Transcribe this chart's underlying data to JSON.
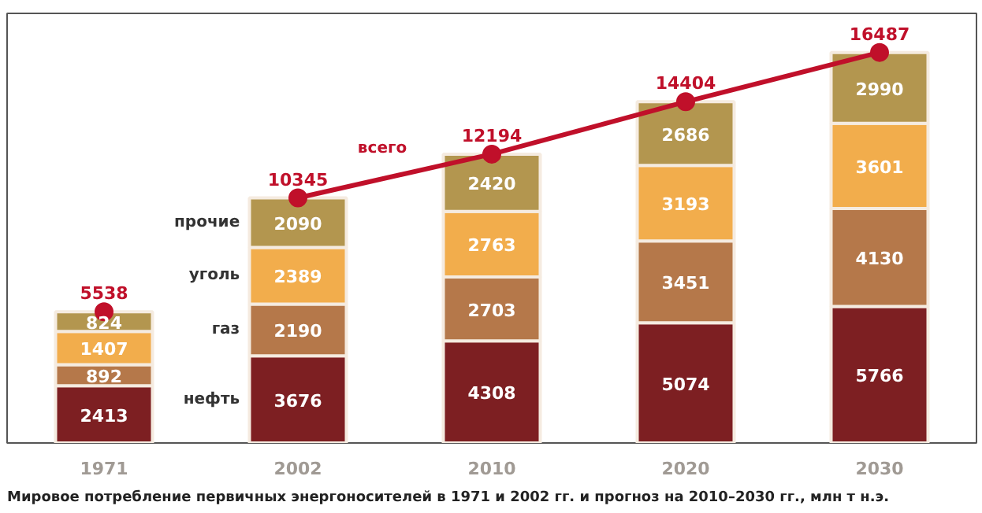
{
  "chart_data": {
    "type": "bar",
    "stacked": true,
    "data_labels": true,
    "grid": false,
    "tick_labels": "x",
    "title": "Мировое потребление первичных энергоносителей в 1971 и 2002 гг. и прогноз на 2010–2030 гг., млн т н.э.",
    "categories": [
      "1971",
      "2002",
      "2010",
      "2020",
      "2030"
    ],
    "series": [
      {
        "name": "нефть",
        "color": "#7d1f22",
        "values": [
          2413,
          3676,
          4308,
          5074,
          5766
        ]
      },
      {
        "name": "газ",
        "color": "#b5784a",
        "values": [
          892,
          2190,
          2703,
          3451,
          4130
        ]
      },
      {
        "name": "уголь",
        "color": "#f2ad4c",
        "values": [
          1407,
          2389,
          2763,
          3193,
          3601
        ]
      },
      {
        "name": "прочие",
        "color": "#b3964f",
        "values": [
          824,
          2090,
          2420,
          2686,
          2990
        ]
      },
      {
        "name": "всего",
        "type": "line",
        "marker": "circle",
        "color": "#c0102a",
        "values": [
          null,
          10345,
          12194,
          14404,
          16487
        ]
      },
      {
        "type": "scatter",
        "marker": "circle",
        "color": "#c0102a",
        "values": [
          5538,
          null,
          null,
          null,
          null
        ]
      }
    ]
  }
}
